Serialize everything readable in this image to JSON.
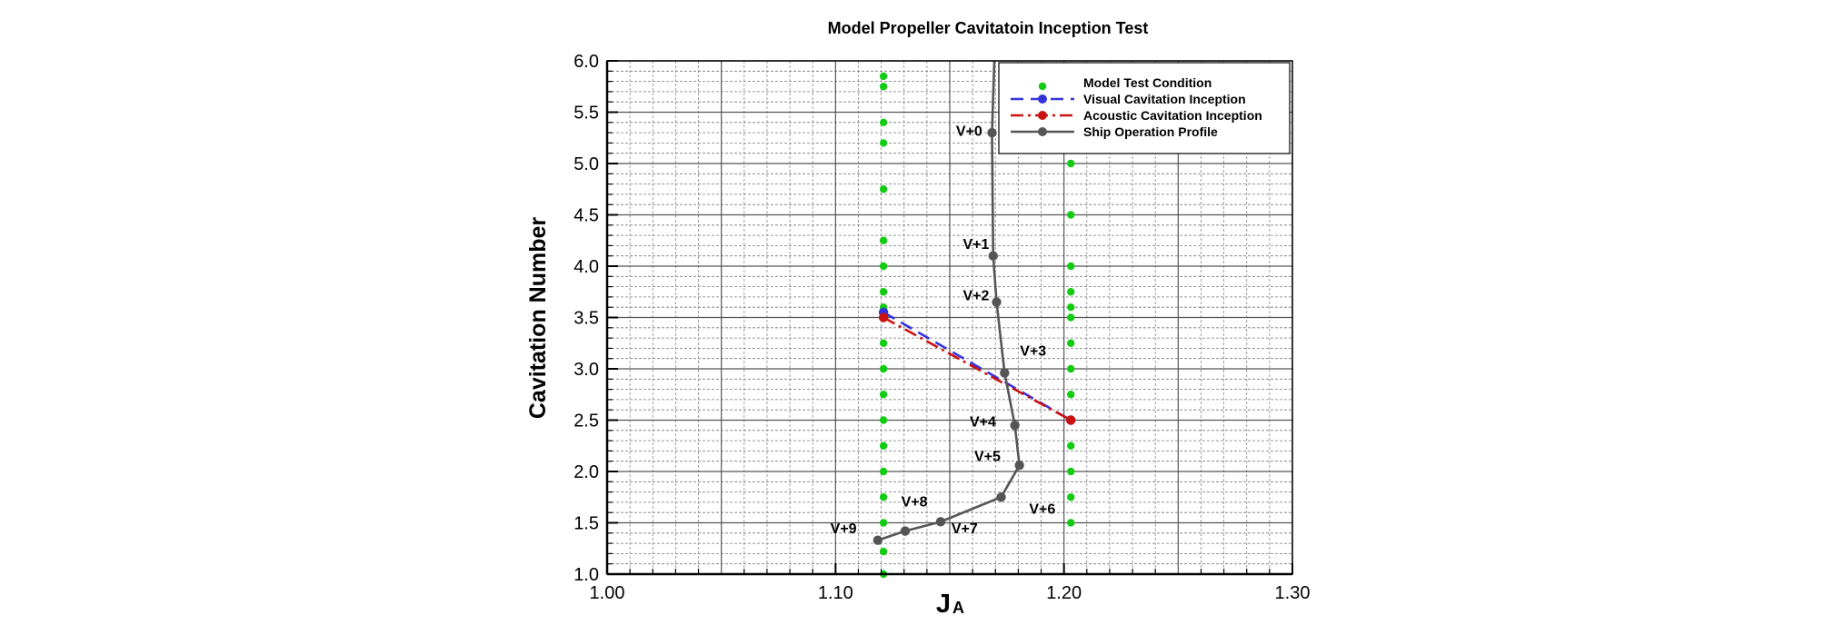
{
  "chart_data": {
    "type": "line",
    "title": "Model Propeller Cavitatoin Inception Test",
    "xlabel_main": "J",
    "xlabel_sub": "A",
    "ylabel": "Cavitation Number",
    "xlim": [
      1.0,
      1.3
    ],
    "ylim": [
      1.0,
      6.0
    ],
    "xticks": [
      "1.00",
      "1.10",
      "1.20",
      "1.30"
    ],
    "yticks": [
      "1.0",
      "1.5",
      "2.0",
      "2.5",
      "3.0",
      "3.5",
      "4.0",
      "4.5",
      "5.0",
      "5.5",
      "6.0"
    ],
    "grid": true,
    "legend_position": "top-right",
    "series": [
      {
        "name": "Model Test Condition",
        "style": "markers",
        "color": "#11cc11",
        "points": [
          [
            1.121,
            1.0
          ],
          [
            1.121,
            1.22
          ],
          [
            1.121,
            1.5
          ],
          [
            1.121,
            1.75
          ],
          [
            1.121,
            2.0
          ],
          [
            1.121,
            2.25
          ],
          [
            1.121,
            2.5
          ],
          [
            1.121,
            2.75
          ],
          [
            1.121,
            3.0
          ],
          [
            1.121,
            3.25
          ],
          [
            1.121,
            3.5
          ],
          [
            1.121,
            3.6
          ],
          [
            1.121,
            3.75
          ],
          [
            1.121,
            4.0
          ],
          [
            1.121,
            4.25
          ],
          [
            1.121,
            4.75
          ],
          [
            1.121,
            5.2
          ],
          [
            1.121,
            5.4
          ],
          [
            1.121,
            5.75
          ],
          [
            1.121,
            5.85
          ],
          [
            1.203,
            1.5
          ],
          [
            1.203,
            1.75
          ],
          [
            1.203,
            2.0
          ],
          [
            1.203,
            2.25
          ],
          [
            1.203,
            2.5
          ],
          [
            1.203,
            2.75
          ],
          [
            1.203,
            3.0
          ],
          [
            1.203,
            3.25
          ],
          [
            1.203,
            3.5
          ],
          [
            1.203,
            3.6
          ],
          [
            1.203,
            3.75
          ],
          [
            1.203,
            4.0
          ],
          [
            1.203,
            4.5
          ],
          [
            1.203,
            5.0
          ]
        ]
      },
      {
        "name": "Visual Cavitation Inception",
        "style": "dashed",
        "color": "#3333dd",
        "points": [
          [
            1.121,
            3.55
          ],
          [
            1.203,
            2.5
          ]
        ]
      },
      {
        "name": "Acoustic Cavitation Inception",
        "style": "dashdot",
        "color": "#cc1111",
        "points": [
          [
            1.121,
            3.5
          ],
          [
            1.203,
            2.5
          ]
        ]
      },
      {
        "name": "Ship Operation Profile",
        "style": "solid",
        "color": "#555555",
        "points": [
          [
            1.1695,
            6.0
          ],
          [
            1.1685,
            5.3
          ],
          [
            1.169,
            4.1
          ],
          [
            1.1705,
            3.65
          ],
          [
            1.174,
            2.96
          ],
          [
            1.1785,
            2.45
          ],
          [
            1.1805,
            2.06
          ],
          [
            1.1725,
            1.75
          ],
          [
            1.146,
            1.51
          ],
          [
            1.1305,
            1.42
          ],
          [
            1.1185,
            1.33
          ]
        ],
        "labels": [
          {
            "text": "V+0",
            "x": 1.1585,
            "y": 5.27
          },
          {
            "text": "V+1",
            "x": 1.1615,
            "y": 4.17
          },
          {
            "text": "V+2",
            "x": 1.1615,
            "y": 3.67
          },
          {
            "text": "V+3",
            "x": 1.1865,
            "y": 3.13
          },
          {
            "text": "V+4",
            "x": 1.1645,
            "y": 2.44
          },
          {
            "text": "V+5",
            "x": 1.1665,
            "y": 2.1
          },
          {
            "text": "V+6",
            "x": 1.1905,
            "y": 1.59
          },
          {
            "text": "V+7",
            "x": 1.1565,
            "y": 1.4
          },
          {
            "text": "V+8",
            "x": 1.1345,
            "y": 1.66
          },
          {
            "text": "V+9",
            "x": 1.1035,
            "y": 1.4
          }
        ]
      }
    ]
  }
}
